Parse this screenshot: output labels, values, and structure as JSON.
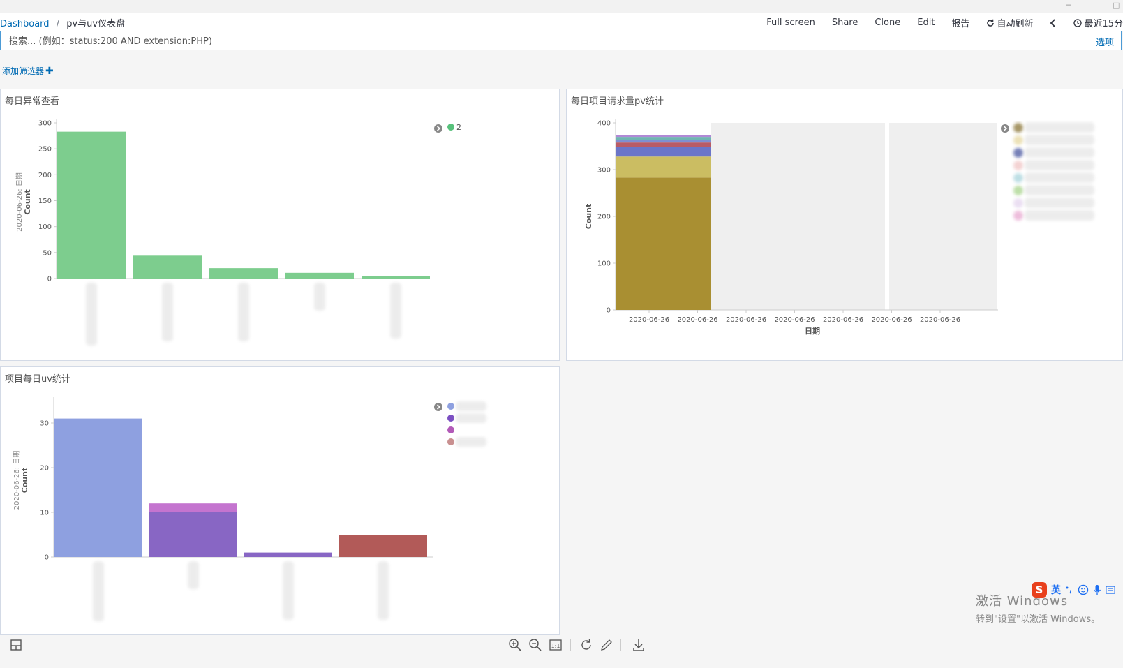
{
  "breadcrumb": {
    "root": "Dashboard",
    "separator": "/",
    "current": "pv与uv仪表盘"
  },
  "nav": {
    "fullscreen": "Full screen",
    "share": "Share",
    "clone": "Clone",
    "edit": "Edit",
    "report": "报告",
    "autorefresh": "自动刷新",
    "timerange": "最近15分"
  },
  "search": {
    "placeholder": "搜索... (例如：status:200 AND extension:PHP)",
    "options": "选项"
  },
  "filters": {
    "add_label": "添加筛选器"
  },
  "panels": {
    "p1_title": "每日异常查看",
    "p2_title": "每日项目请求量pv统计",
    "p3_title": "项目每日uv统计"
  },
  "chart_data": [
    {
      "type": "bar",
      "title": "每日异常查看",
      "ylabel": "Count",
      "ylabel_prefix": "2020-06-26: 日期",
      "ylim": [
        0,
        300
      ],
      "yticks": [
        0,
        50,
        100,
        150,
        200,
        250,
        300
      ],
      "categories": [
        "",
        "",
        "",
        "",
        ""
      ],
      "series": [
        {
          "name": "2",
          "color": "#7dcd8e",
          "values": [
            283,
            44,
            20,
            11,
            5
          ]
        }
      ],
      "legend": [
        {
          "label": "2",
          "color": "#57c17b"
        }
      ]
    },
    {
      "type": "bar",
      "stacked": true,
      "title": "每日项目请求量pv统计",
      "xlabel": "日期",
      "ylabel": "Count",
      "ylim": [
        0,
        400
      ],
      "yticks": [
        0,
        100,
        200,
        300,
        400
      ],
      "xticks": [
        "2020-06-26",
        "2020-06-26",
        "2020-06-26",
        "2020-06-26",
        "2020-06-26",
        "2020-06-26",
        "2020-06-26"
      ],
      "series": [
        {
          "name": "",
          "color": "#a98f32",
          "values": [
            283
          ]
        },
        {
          "name": "",
          "color": "#cbbd62",
          "values": [
            45
          ]
        },
        {
          "name": "",
          "color": "#6b75c8",
          "values": [
            20
          ]
        },
        {
          "name": "",
          "color": "#b95b66",
          "values": [
            10
          ]
        },
        {
          "name": "",
          "color": "#7f8fd1",
          "values": [
            6
          ]
        },
        {
          "name": "",
          "color": "#6fb5b1",
          "values": [
            6
          ]
        },
        {
          "name": "",
          "color": "#b089d6",
          "values": [
            4
          ]
        }
      ],
      "legend_colors": [
        "#8a7436",
        "#e6d8a0",
        "#4856a0",
        "#f0c4c4",
        "#a8d4dc",
        "#a8d48c",
        "#e4d4ee",
        "#e8a8d0"
      ]
    },
    {
      "type": "bar",
      "stacked": true,
      "title": "项目每日uv统计",
      "ylabel": "Count",
      "ylabel_prefix": "2020-06-26: 日期",
      "ylim": [
        0,
        35
      ],
      "yticks": [
        0,
        10,
        20,
        30
      ],
      "categories": [
        "",
        "",
        "",
        ""
      ],
      "series": [
        {
          "name": "",
          "color": "#8ea0e0",
          "values": [
            31,
            0,
            0,
            0
          ]
        },
        {
          "name": "",
          "color": "#8866c4",
          "values": [
            0,
            10,
            1,
            0
          ]
        },
        {
          "name": "",
          "color": "#c474cf",
          "values": [
            0,
            2,
            0,
            0
          ]
        },
        {
          "name": "",
          "color": "#b25a58",
          "values": [
            0,
            0,
            0,
            5
          ]
        }
      ],
      "legend_colors": [
        "#8ea0e0",
        "#7b4fc2",
        "#b25ab8",
        "#c99090"
      ]
    }
  ],
  "watermark": {
    "line1": "激活 Windows",
    "line2": "转到\"设置\"以激活 Windows。"
  },
  "ime": {
    "label": "英"
  }
}
